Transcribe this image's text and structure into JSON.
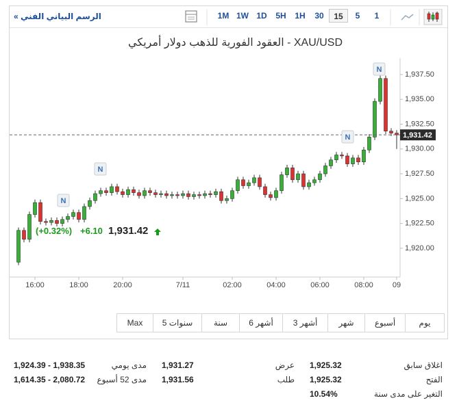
{
  "header": {
    "link": "الرسم البياني الفني »",
    "title": "XAU/USD - العقود الفورية للذهب دولار أمريكي"
  },
  "toolbar": {
    "intervals": [
      "1M",
      "1W",
      "1D",
      "5H",
      "1H",
      "30",
      "15",
      "5",
      "1"
    ],
    "active_interval": 6
  },
  "quote": {
    "change_percent": "(+0.32%)",
    "change": "+6.10",
    "price": "1,931.42"
  },
  "chart_data": {
    "type": "candlestick",
    "categories": [
      null,
      null,
      null,
      "16:00",
      null,
      null,
      null,
      null,
      null,
      null,
      null,
      "18:00",
      null,
      null,
      null,
      null,
      null,
      null,
      null,
      "20:00",
      null,
      null,
      null,
      null,
      null,
      null,
      null,
      null,
      null,
      null,
      "7/11",
      null,
      null,
      null,
      null,
      null,
      null,
      null,
      null,
      "02:00",
      null,
      null,
      null,
      null,
      null,
      null,
      null,
      "04:00",
      null,
      null,
      null,
      null,
      null,
      null,
      null,
      "06:00",
      null,
      null,
      null,
      null,
      null,
      null,
      null,
      "08:00",
      null,
      null,
      null,
      null,
      null,
      "09"
    ],
    "open": [
      1918.6,
      1921.8,
      1920.9,
      1923.4,
      1924.6,
      1922.7,
      1922.6,
      1922.8,
      1922.5,
      1922.9,
      1923.2,
      1923.6,
      1922.9,
      1924.2,
      1924.8,
      1925.5,
      1925.8,
      1925.6,
      1926.2,
      1925.7,
      1925.4,
      1925.9,
      1925.6,
      1925.3,
      1925.8,
      1925.6,
      1925.4,
      1925.5,
      1925.3,
      1925.4,
      1925.3,
      1925.5,
      1925.2,
      1925.4,
      1925.3,
      1925.5,
      1925.4,
      1925.7,
      1924.8,
      1925.0,
      1925.8,
      1926.9,
      1926.3,
      1926.6,
      1927.1,
      1926.2,
      1925.4,
      1925.1,
      1925.8,
      1927.4,
      1928.1,
      1926.9,
      1927.5,
      1926.2,
      1926.6,
      1926.9,
      1927.5,
      1928.3,
      1928.9,
      1929.4,
      1929.3,
      1928.5,
      1929.1,
      1928.7,
      1929.9,
      1931.2,
      1934.8,
      1937.1,
      1931.8,
      1931.6
    ],
    "high": [
      1922.1,
      1922.1,
      1923.7,
      1924.9,
      1924.9,
      1923.0,
      1923.1,
      1923.1,
      1923.2,
      1923.5,
      1923.9,
      1923.9,
      1924.5,
      1925.1,
      1925.8,
      1926.1,
      1926.1,
      1926.5,
      1926.5,
      1926.0,
      1926.2,
      1926.2,
      1925.9,
      1926.1,
      1926.1,
      1925.9,
      1925.8,
      1925.8,
      1925.7,
      1925.7,
      1925.8,
      1925.8,
      1925.7,
      1925.7,
      1925.8,
      1925.8,
      1926.0,
      1926.0,
      1925.3,
      1926.1,
      1927.2,
      1927.2,
      1926.9,
      1927.4,
      1927.4,
      1926.5,
      1925.7,
      1926.1,
      1927.7,
      1928.4,
      1928.4,
      1927.8,
      1927.8,
      1926.9,
      1927.2,
      1927.8,
      1928.6,
      1929.2,
      1929.7,
      1929.7,
      1929.6,
      1929.4,
      1929.4,
      1930.2,
      1931.5,
      1935.1,
      1937.6,
      1937.4,
      1932.1,
      1931.9
    ],
    "low": [
      1918.3,
      1920.6,
      1920.6,
      1923.1,
      1922.4,
      1922.3,
      1922.3,
      1922.2,
      1922.2,
      1922.6,
      1922.9,
      1922.6,
      1922.6,
      1923.9,
      1924.5,
      1925.2,
      1925.3,
      1925.3,
      1925.4,
      1925.1,
      1925.1,
      1925.3,
      1925.0,
      1925.0,
      1925.3,
      1925.1,
      1925.1,
      1925.0,
      1925.0,
      1925.0,
      1925.0,
      1924.9,
      1924.9,
      1925.0,
      1925.0,
      1925.1,
      1925.1,
      1924.5,
      1924.5,
      1924.7,
      1925.5,
      1926.0,
      1926.0,
      1926.3,
      1925.9,
      1925.1,
      1924.8,
      1924.8,
      1925.5,
      1927.1,
      1926.6,
      1926.6,
      1925.9,
      1925.9,
      1926.3,
      1926.6,
      1927.2,
      1928.0,
      1928.6,
      1929.0,
      1928.2,
      1928.2,
      1928.4,
      1928.4,
      1929.6,
      1930.9,
      1934.5,
      1931.5,
      1931.3,
      1930.0
    ],
    "close": [
      1921.8,
      1920.9,
      1923.4,
      1924.6,
      1922.7,
      1922.6,
      1922.8,
      1922.5,
      1922.9,
      1923.2,
      1923.6,
      1922.9,
      1924.2,
      1924.8,
      1925.5,
      1925.8,
      1925.6,
      1926.2,
      1925.7,
      1925.4,
      1925.9,
      1925.6,
      1925.3,
      1925.8,
      1925.6,
      1925.4,
      1925.5,
      1925.3,
      1925.4,
      1925.3,
      1925.5,
      1925.2,
      1925.4,
      1925.3,
      1925.5,
      1925.4,
      1925.7,
      1924.8,
      1925.0,
      1925.8,
      1926.9,
      1926.3,
      1926.6,
      1927.1,
      1926.2,
      1925.4,
      1925.1,
      1925.8,
      1927.4,
      1928.1,
      1926.9,
      1927.5,
      1926.2,
      1926.6,
      1926.9,
      1927.5,
      1928.3,
      1928.9,
      1929.4,
      1929.3,
      1928.5,
      1929.1,
      1928.7,
      1929.9,
      1931.2,
      1934.8,
      1937.1,
      1931.8,
      1931.6,
      1931.42
    ],
    "up_color": "#35b135",
    "down_color": "#e0302f",
    "ylim": [
      1917.1,
      1939.15
    ],
    "yticks": [
      {
        "value": 1920,
        "label": "1,920.00"
      },
      {
        "value": 1922.5,
        "label": "1,922.50"
      },
      {
        "value": 1925,
        "label": "1,925.00"
      },
      {
        "value": 1927.5,
        "label": "1,927.50"
      },
      {
        "value": 1930,
        "label": "1,930.00"
      },
      {
        "value": 1932.5,
        "label": "1,932.50"
      },
      {
        "value": 1935,
        "label": "1,935.00"
      },
      {
        "value": 1937.5,
        "label": "1,937.50"
      }
    ],
    "last": {
      "value": 1931.42,
      "label": "1,931.42"
    },
    "markers": [
      "N",
      "N",
      "N",
      "N"
    ]
  },
  "ranges": [
    "Max",
    "5 سنوات",
    "سنة",
    "6 أشهر",
    "3 أشهر",
    "شهر",
    "أسبوع",
    "يوم"
  ],
  "stats": [
    [
      {
        "label": "اغلاق سابق",
        "value": "1,925.32"
      },
      {
        "label": "الفتح",
        "value": "1,925.32"
      },
      {
        "label": "التغير على مدى سنة",
        "value": "10.54%"
      }
    ],
    [
      {
        "label": "عرض",
        "value": "1,931.27"
      },
      {
        "label": "طلب",
        "value": "1,931.56"
      }
    ],
    [
      {
        "label": "مدى يومي",
        "value": "1,924.39 - 1,938.35"
      },
      {
        "label": "مدى 52 أسبوع",
        "value": "1,614.35 - 2,080.72"
      }
    ]
  ]
}
